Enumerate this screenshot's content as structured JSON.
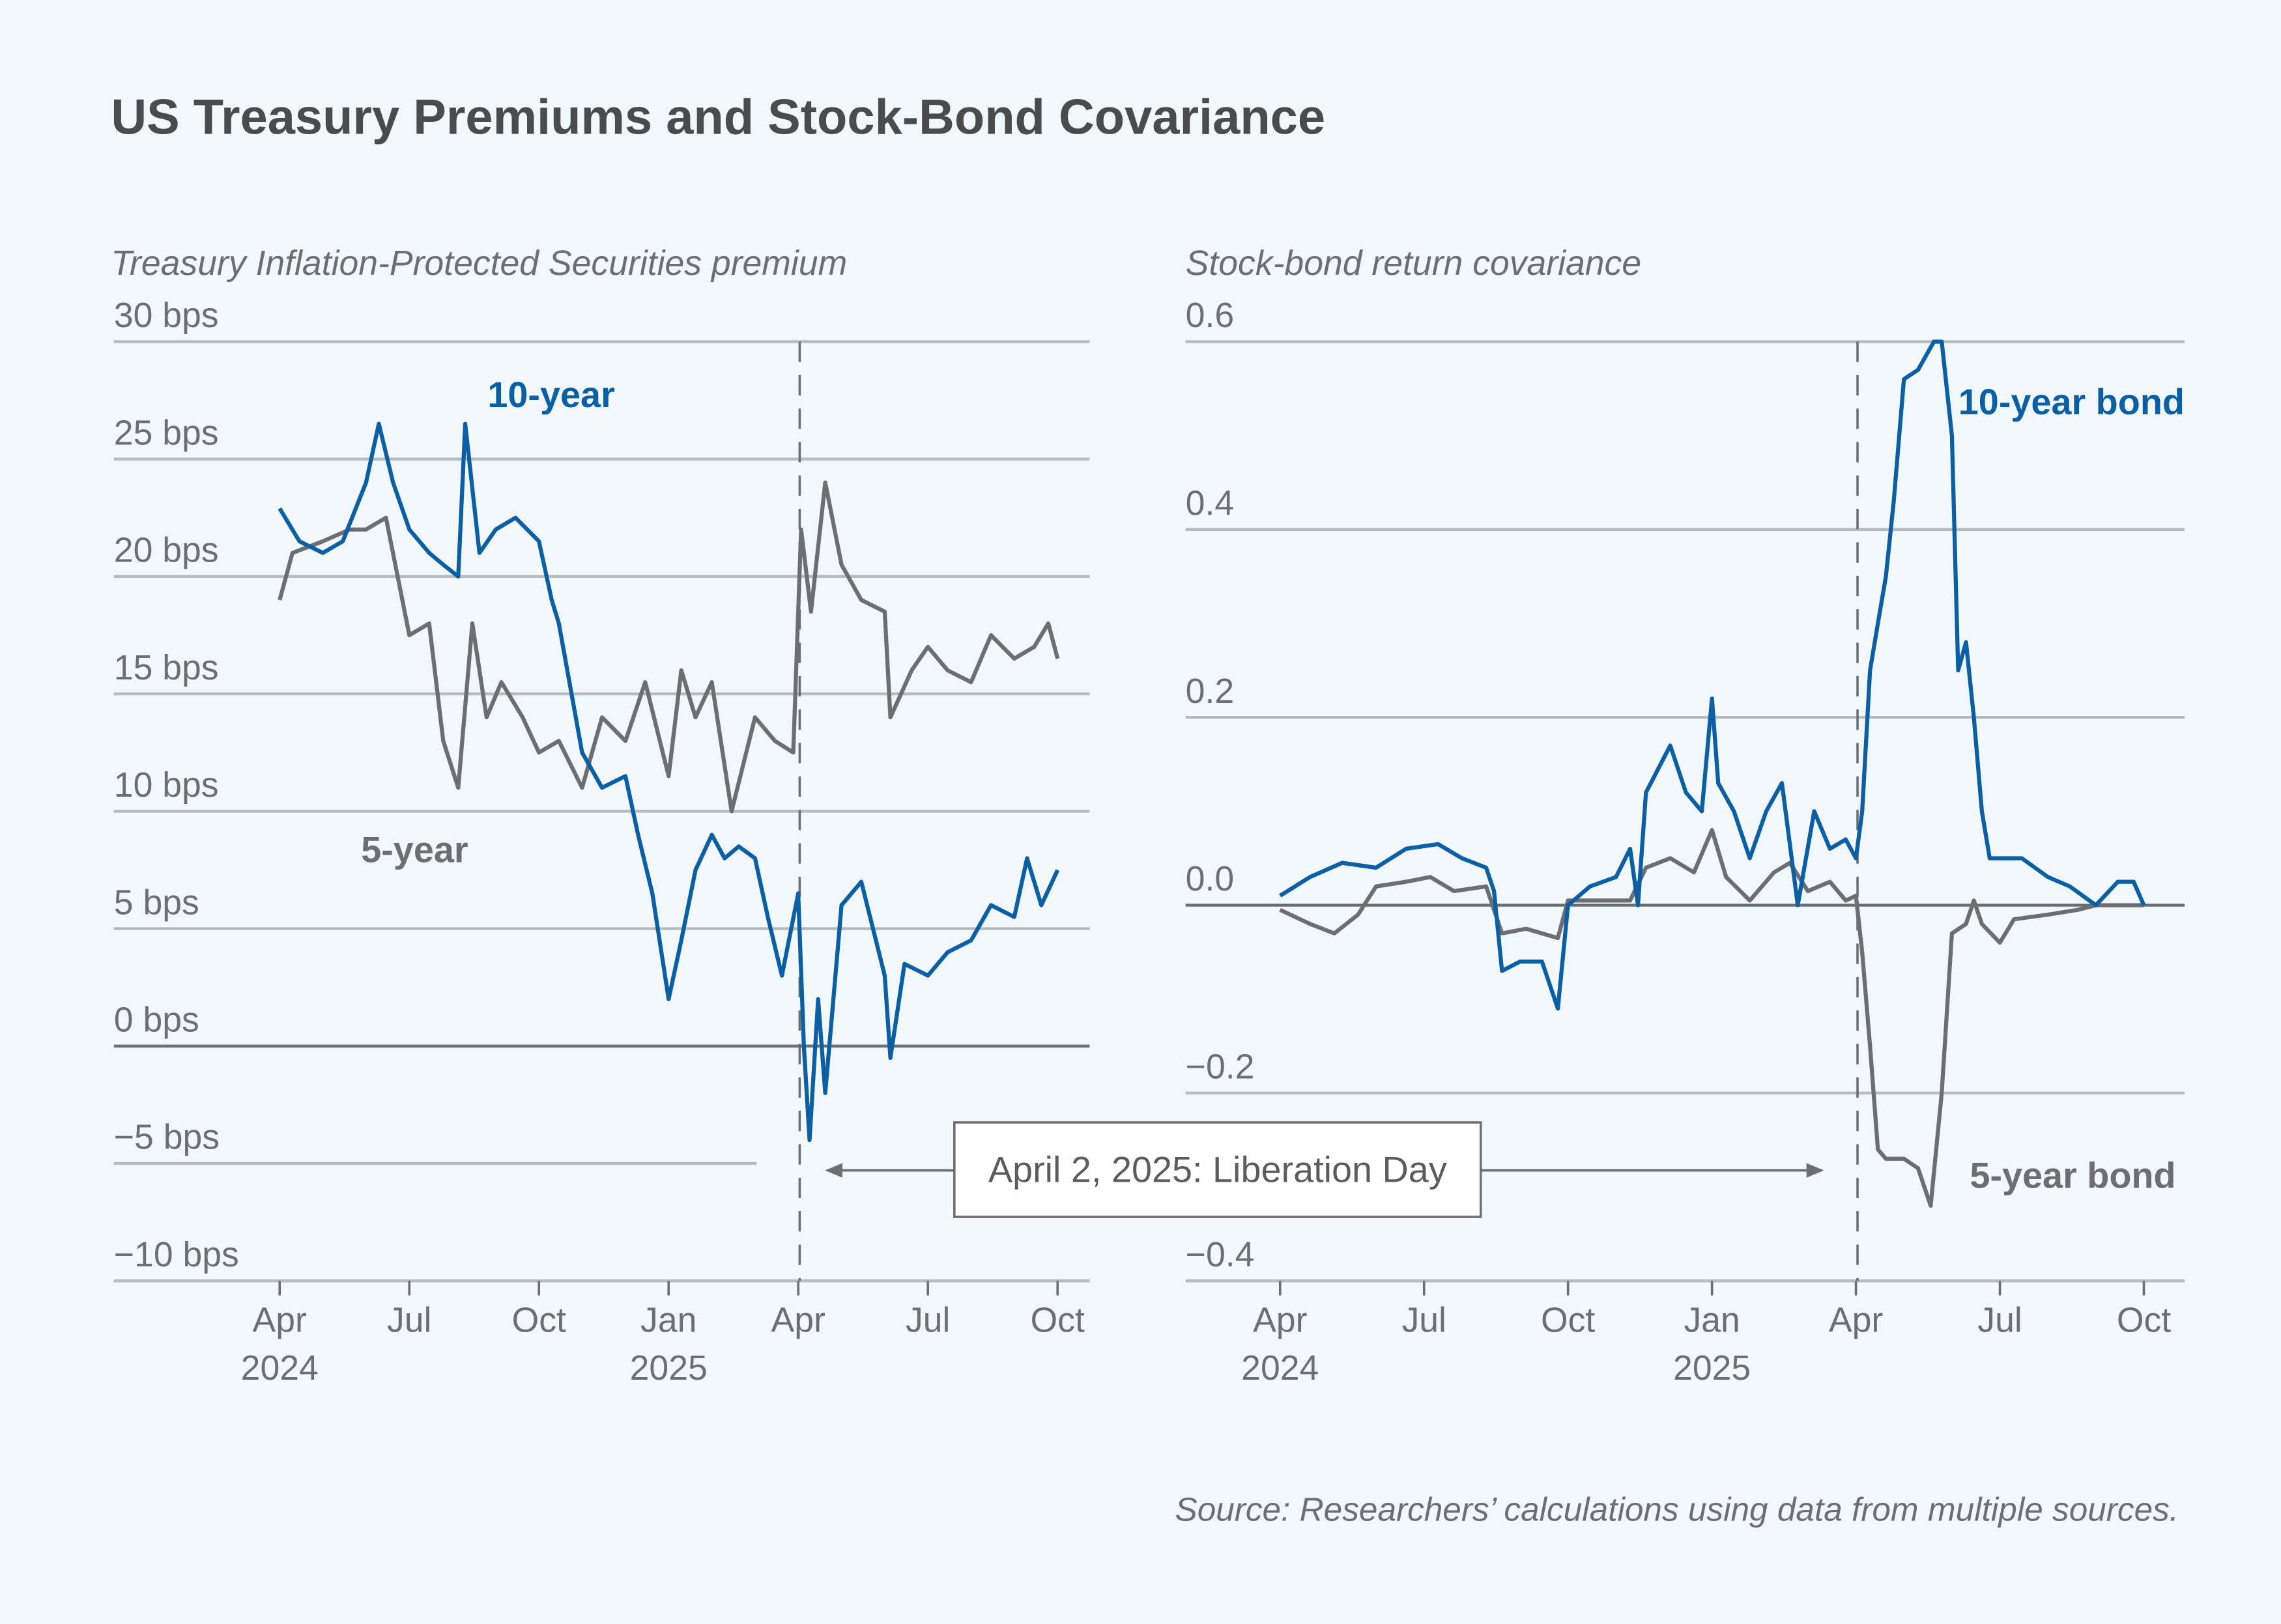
{
  "title": "US Treasury Premiums and Stock-Bond Covariance",
  "source": "Source: Researchers’ calculations using data from multiple sources.",
  "annotation": "April 2, 2025: Liberation Day",
  "colors": {
    "blue": "#0b5fa5",
    "gray": "#6d6e71",
    "background": "#f2f7fb",
    "grid": "#b8bbbe"
  },
  "chart_data": [
    {
      "type": "line",
      "title": "Treasury Inflation-Protected Securities premium",
      "ylim": [
        -10,
        30
      ],
      "yticks": [
        {
          "v": 30,
          "label": "30 bps"
        },
        {
          "v": 25,
          "label": "25 bps"
        },
        {
          "v": 20,
          "label": "20 bps"
        },
        {
          "v": 15,
          "label": "15 bps"
        },
        {
          "v": 10,
          "label": "10 bps"
        },
        {
          "v": 5,
          "label": "5 bps"
        },
        {
          "v": 0,
          "label": "0 bps"
        },
        {
          "v": -5,
          "label": "−5 bps"
        },
        {
          "v": -10,
          "label": "−10 bps"
        }
      ],
      "xticks": [
        {
          "d": "2024-04-01",
          "label": "Apr",
          "year": "2024"
        },
        {
          "d": "2024-07-01",
          "label": "Jul",
          "year": ""
        },
        {
          "d": "2024-10-01",
          "label": "Oct",
          "year": ""
        },
        {
          "d": "2025-01-01",
          "label": "Jan",
          "year": "2025"
        },
        {
          "d": "2025-04-01",
          "label": "Apr",
          "year": ""
        },
        {
          "d": "2025-07-01",
          "label": "Jul",
          "year": ""
        },
        {
          "d": "2025-10-01",
          "label": "Oct",
          "year": ""
        }
      ],
      "event_date": "2025-04-02",
      "grid": true,
      "series": [
        {
          "name": "10-year",
          "color": "#0b5fa5",
          "points": [
            [
              "2024-04-01",
              22.9
            ],
            [
              "2024-04-15",
              21.5
            ],
            [
              "2024-05-01",
              21
            ],
            [
              "2024-05-15",
              21.5
            ],
            [
              "2024-06-01",
              24
            ],
            [
              "2024-06-10",
              26.5
            ],
            [
              "2024-06-20",
              24
            ],
            [
              "2024-07-01",
              22
            ],
            [
              "2024-07-15",
              21
            ],
            [
              "2024-07-25",
              20.5
            ],
            [
              "2024-08-05",
              20
            ],
            [
              "2024-08-10",
              26.5
            ],
            [
              "2024-08-20",
              21
            ],
            [
              "2024-09-01",
              22
            ],
            [
              "2024-09-15",
              22.5
            ],
            [
              "2024-10-01",
              21.5
            ],
            [
              "2024-10-10",
              19
            ],
            [
              "2024-10-15",
              18
            ],
            [
              "2024-11-01",
              12.5
            ],
            [
              "2024-11-15",
              11
            ],
            [
              "2024-12-01",
              11.5
            ],
            [
              "2024-12-10",
              9
            ],
            [
              "2024-12-20",
              6.5
            ],
            [
              "2025-01-01",
              2
            ],
            [
              "2025-01-10",
              4.5
            ],
            [
              "2025-01-20",
              7.5
            ],
            [
              "2025-02-01",
              9
            ],
            [
              "2025-02-10",
              8
            ],
            [
              "2025-02-20",
              8.5
            ],
            [
              "2025-03-01",
              8
            ],
            [
              "2025-03-10",
              5.5
            ],
            [
              "2025-03-20",
              3
            ],
            [
              "2025-04-01",
              6.5
            ],
            [
              "2025-04-05",
              0
            ],
            [
              "2025-04-09",
              -4
            ],
            [
              "2025-04-15",
              2
            ],
            [
              "2025-04-20",
              -2
            ],
            [
              "2025-05-01",
              6
            ],
            [
              "2025-05-15",
              7
            ],
            [
              "2025-06-01",
              3
            ],
            [
              "2025-06-05",
              -0.5
            ],
            [
              "2025-06-15",
              3.5
            ],
            [
              "2025-07-01",
              3
            ],
            [
              "2025-07-15",
              4
            ],
            [
              "2025-08-01",
              4.5
            ],
            [
              "2025-08-15",
              6
            ],
            [
              "2025-09-01",
              5.5
            ],
            [
              "2025-09-10",
              8
            ],
            [
              "2025-09-20",
              6
            ],
            [
              "2025-10-01",
              7.5
            ]
          ]
        },
        {
          "name": "5-year",
          "color": "#6d6e71",
          "points": [
            [
              "2024-04-01",
              19
            ],
            [
              "2024-04-10",
              21
            ],
            [
              "2024-05-01",
              21.5
            ],
            [
              "2024-05-20",
              22
            ],
            [
              "2024-06-01",
              22
            ],
            [
              "2024-06-15",
              22.5
            ],
            [
              "2024-07-01",
              17.5
            ],
            [
              "2024-07-15",
              18
            ],
            [
              "2024-07-25",
              13
            ],
            [
              "2024-08-05",
              11
            ],
            [
              "2024-08-15",
              18
            ],
            [
              "2024-08-25",
              14
            ],
            [
              "2024-09-05",
              15.5
            ],
            [
              "2024-09-20",
              14
            ],
            [
              "2024-10-01",
              12.5
            ],
            [
              "2024-10-15",
              13
            ],
            [
              "2024-11-01",
              11
            ],
            [
              "2024-11-15",
              14
            ],
            [
              "2024-12-01",
              13
            ],
            [
              "2024-12-15",
              15.5
            ],
            [
              "2025-01-01",
              11.5
            ],
            [
              "2025-01-10",
              16
            ],
            [
              "2025-01-20",
              14
            ],
            [
              "2025-02-01",
              15.5
            ],
            [
              "2025-02-15",
              10
            ],
            [
              "2025-03-01",
              14
            ],
            [
              "2025-03-15",
              13
            ],
            [
              "2025-03-28",
              12.5
            ],
            [
              "2025-04-03",
              22
            ],
            [
              "2025-04-10",
              18.5
            ],
            [
              "2025-04-20",
              24
            ],
            [
              "2025-05-01",
              20.5
            ],
            [
              "2025-05-15",
              19
            ],
            [
              "2025-06-01",
              18.5
            ],
            [
              "2025-06-05",
              14
            ],
            [
              "2025-06-20",
              16
            ],
            [
              "2025-07-01",
              17
            ],
            [
              "2025-07-15",
              16
            ],
            [
              "2025-08-01",
              15.5
            ],
            [
              "2025-08-15",
              17.5
            ],
            [
              "2025-09-01",
              16.5
            ],
            [
              "2025-09-15",
              17
            ],
            [
              "2025-09-25",
              18
            ],
            [
              "2025-10-01",
              16.5
            ]
          ]
        }
      ]
    },
    {
      "type": "line",
      "title": "Stock-bond return covariance",
      "ylim": [
        -0.4,
        0.6
      ],
      "yticks": [
        {
          "v": 0.6,
          "label": "0.6"
        },
        {
          "v": 0.4,
          "label": "0.4"
        },
        {
          "v": 0.2,
          "label": "0.2"
        },
        {
          "v": 0,
          "label": "0.0"
        },
        {
          "v": -0.2,
          "label": "−0.2"
        },
        {
          "v": -0.4,
          "label": "−0.4"
        }
      ],
      "xticks": [
        {
          "d": "2024-04-01",
          "label": "Apr",
          "year": "2024"
        },
        {
          "d": "2024-07-01",
          "label": "Jul",
          "year": ""
        },
        {
          "d": "2024-10-01",
          "label": "Oct",
          "year": ""
        },
        {
          "d": "2025-01-01",
          "label": "Jan",
          "year": "2025"
        },
        {
          "d": "2025-04-01",
          "label": "Apr",
          "year": ""
        },
        {
          "d": "2025-07-01",
          "label": "Jul",
          "year": ""
        },
        {
          "d": "2025-10-01",
          "label": "Oct",
          "year": ""
        }
      ],
      "event_date": "2025-04-02",
      "grid": true,
      "series": [
        {
          "name": "10-year bond",
          "color": "#0b5fa5",
          "points": [
            [
              "2024-04-01",
              0.01
            ],
            [
              "2024-04-20",
              0.03
            ],
            [
              "2024-05-10",
              0.045
            ],
            [
              "2024-06-01",
              0.04
            ],
            [
              "2024-06-20",
              0.06
            ],
            [
              "2024-07-10",
              0.065
            ],
            [
              "2024-07-25",
              0.05
            ],
            [
              "2024-08-10",
              0.04
            ],
            [
              "2024-08-15",
              0.015
            ],
            [
              "2024-08-20",
              -0.07
            ],
            [
              "2024-09-01",
              -0.06
            ],
            [
              "2024-09-15",
              -0.06
            ],
            [
              "2024-09-25",
              -0.11
            ],
            [
              "2024-10-01",
              0.0
            ],
            [
              "2024-10-15",
              0.02
            ],
            [
              "2024-11-01",
              0.03
            ],
            [
              "2024-11-10",
              0.06
            ],
            [
              "2024-11-15",
              0.0
            ],
            [
              "2024-11-20",
              0.12
            ],
            [
              "2024-12-05",
              0.17
            ],
            [
              "2024-12-15",
              0.12
            ],
            [
              "2024-12-25",
              0.1
            ],
            [
              "2025-01-01",
              0.22
            ],
            [
              "2025-01-05",
              0.13
            ],
            [
              "2025-01-15",
              0.1
            ],
            [
              "2025-01-25",
              0.05
            ],
            [
              "2025-02-05",
              0.1
            ],
            [
              "2025-02-15",
              0.13
            ],
            [
              "2025-02-25",
              0.0
            ],
            [
              "2025-03-05",
              0.1
            ],
            [
              "2025-03-15",
              0.06
            ],
            [
              "2025-03-25",
              0.07
            ],
            [
              "2025-04-01",
              0.05
            ],
            [
              "2025-04-05",
              0.1
            ],
            [
              "2025-04-10",
              0.25
            ],
            [
              "2025-04-15",
              0.3
            ],
            [
              "2025-04-20",
              0.35
            ],
            [
              "2025-04-25",
              0.43
            ],
            [
              "2025-05-01",
              0.56
            ],
            [
              "2025-05-10",
              0.57
            ],
            [
              "2025-05-20",
              0.6
            ],
            [
              "2025-05-25",
              0.6
            ],
            [
              "2025-06-01",
              0.5
            ],
            [
              "2025-06-05",
              0.25
            ],
            [
              "2025-06-10",
              0.28
            ],
            [
              "2025-06-15",
              0.2
            ],
            [
              "2025-06-20",
              0.1
            ],
            [
              "2025-06-25",
              0.05
            ],
            [
              "2025-07-15",
              0.05
            ],
            [
              "2025-08-01",
              0.03
            ],
            [
              "2025-08-15",
              0.02
            ],
            [
              "2025-09-01",
              0.0
            ],
            [
              "2025-09-15",
              0.025
            ],
            [
              "2025-09-25",
              0.025
            ],
            [
              "2025-10-01",
              0.0
            ]
          ]
        },
        {
          "name": "5-year bond",
          "color": "#6d6e71",
          "points": [
            [
              "2024-04-01",
              -0.005
            ],
            [
              "2024-04-20",
              -0.02
            ],
            [
              "2024-05-05",
              -0.03
            ],
            [
              "2024-05-20",
              -0.01
            ],
            [
              "2024-06-01",
              0.02
            ],
            [
              "2024-06-20",
              0.025
            ],
            [
              "2024-07-05",
              0.03
            ],
            [
              "2024-07-20",
              0.015
            ],
            [
              "2024-08-10",
              0.02
            ],
            [
              "2024-08-20",
              -0.03
            ],
            [
              "2024-09-05",
              -0.025
            ],
            [
              "2024-09-25",
              -0.035
            ],
            [
              "2024-10-01",
              0.005
            ],
            [
              "2024-10-20",
              0.005
            ],
            [
              "2024-11-10",
              0.005
            ],
            [
              "2024-11-20",
              0.04
            ],
            [
              "2024-12-05",
              0.05
            ],
            [
              "2024-12-20",
              0.035
            ],
            [
              "2025-01-01",
              0.08
            ],
            [
              "2025-01-10",
              0.03
            ],
            [
              "2025-01-25",
              0.005
            ],
            [
              "2025-02-10",
              0.035
            ],
            [
              "2025-02-20",
              0.045
            ],
            [
              "2025-03-01",
              0.015
            ],
            [
              "2025-03-15",
              0.025
            ],
            [
              "2025-03-25",
              0.005
            ],
            [
              "2025-04-01",
              0.01
            ],
            [
              "2025-04-05",
              -0.05
            ],
            [
              "2025-04-10",
              -0.15
            ],
            [
              "2025-04-15",
              -0.26
            ],
            [
              "2025-04-20",
              -0.27
            ],
            [
              "2025-05-01",
              -0.27
            ],
            [
              "2025-05-10",
              -0.28
            ],
            [
              "2025-05-18",
              -0.32
            ],
            [
              "2025-05-25",
              -0.2
            ],
            [
              "2025-06-01",
              -0.03
            ],
            [
              "2025-06-10",
              -0.02
            ],
            [
              "2025-06-15",
              0.005
            ],
            [
              "2025-06-20",
              -0.02
            ],
            [
              "2025-07-01",
              -0.04
            ],
            [
              "2025-07-10",
              -0.015
            ],
            [
              "2025-08-01",
              -0.01
            ],
            [
              "2025-08-20",
              -0.005
            ],
            [
              "2025-09-01",
              0.0
            ],
            [
              "2025-09-20",
              0.0
            ],
            [
              "2025-10-01",
              0.0
            ]
          ]
        }
      ]
    }
  ]
}
